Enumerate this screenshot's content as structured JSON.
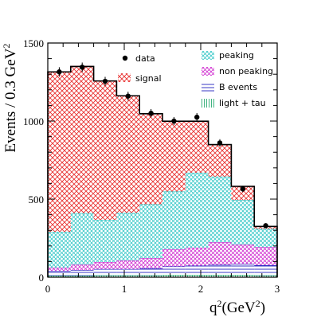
{
  "chart_data": {
    "type": "bar",
    "subtype": "stacked-histogram",
    "xlabel": "q²(GeV²)",
    "xlabel_parts": {
      "base": "q",
      "sup": "2",
      "open": "(GeV",
      "sup2": "2",
      "close": ")"
    },
    "ylabel": "Events / 0.3 GeV²",
    "ylabel_parts": {
      "base": "Events / 0.3 GeV",
      "sup": "2"
    },
    "xlim": [
      0,
      3
    ],
    "ylim": [
      0,
      1500
    ],
    "xticks": [
      0,
      1,
      2,
      3
    ],
    "xtick_labels": [
      "0",
      "1",
      "2",
      "3"
    ],
    "yticks": [
      0,
      500,
      1000,
      1500
    ],
    "ytick_labels": [
      "0",
      "500",
      "1000",
      "1500"
    ],
    "bin_edges": [
      0,
      0.3,
      0.6,
      0.9,
      1.2,
      1.5,
      1.8,
      2.1,
      2.4,
      2.7,
      3.0
    ],
    "bin_centers": [
      0.15,
      0.45,
      0.75,
      1.05,
      1.35,
      1.65,
      1.95,
      2.25,
      2.55,
      2.85
    ],
    "series": [
      {
        "name": "light + tau",
        "key": "light_tau",
        "values": [
          10,
          10,
          12,
          12,
          12,
          14,
          14,
          14,
          14,
          12
        ]
      },
      {
        "name": "B events",
        "key": "b_events",
        "values": [
          30,
          35,
          40,
          40,
          45,
          55,
          60,
          65,
          70,
          65
        ]
      },
      {
        "name": "non peaking",
        "key": "non_peaking",
        "values": [
          20,
          35,
          45,
          55,
          65,
          110,
          115,
          145,
          125,
          115
        ]
      },
      {
        "name": "peaking",
        "key": "peaking",
        "values": [
          230,
          330,
          270,
          305,
          345,
          370,
          480,
          420,
          285,
          118
        ]
      },
      {
        "name": "signal",
        "key": "signal",
        "values": [
          1025,
          940,
          890,
          750,
          580,
          450,
          330,
          205,
          88,
          15
        ]
      }
    ],
    "totals": [
      1315,
      1350,
      1257,
      1162,
      1047,
      1000,
      1000,
      849,
      582,
      325
    ],
    "data_series": {
      "name": "data",
      "x": [
        0.15,
        0.45,
        0.75,
        1.05,
        1.35,
        1.65,
        1.95,
        2.25,
        2.55,
        2.85
      ],
      "y": [
        1315,
        1345,
        1255,
        1160,
        1050,
        1000,
        1025,
        860,
        565,
        330
      ],
      "err": [
        30,
        30,
        28,
        28,
        27,
        26,
        26,
        24,
        20,
        15
      ]
    },
    "legend": [
      {
        "label": "data",
        "style": "dot"
      },
      {
        "label": "signal",
        "style": "red-crosshatch"
      },
      {
        "label": "peaking",
        "style": "cyan-crosshatch"
      },
      {
        "label": "non peaking",
        "style": "magenta-crosshatch"
      },
      {
        "label": "B events",
        "style": "blue-lines"
      },
      {
        "label": "light + tau",
        "style": "green-vertical"
      }
    ],
    "colors": {
      "signal": "#e8302f",
      "peaking": "#38c8c8",
      "non_peaking": "#d030d0",
      "b_events": "#2020c0",
      "light_tau": "#10a060",
      "data": "#000000"
    }
  }
}
